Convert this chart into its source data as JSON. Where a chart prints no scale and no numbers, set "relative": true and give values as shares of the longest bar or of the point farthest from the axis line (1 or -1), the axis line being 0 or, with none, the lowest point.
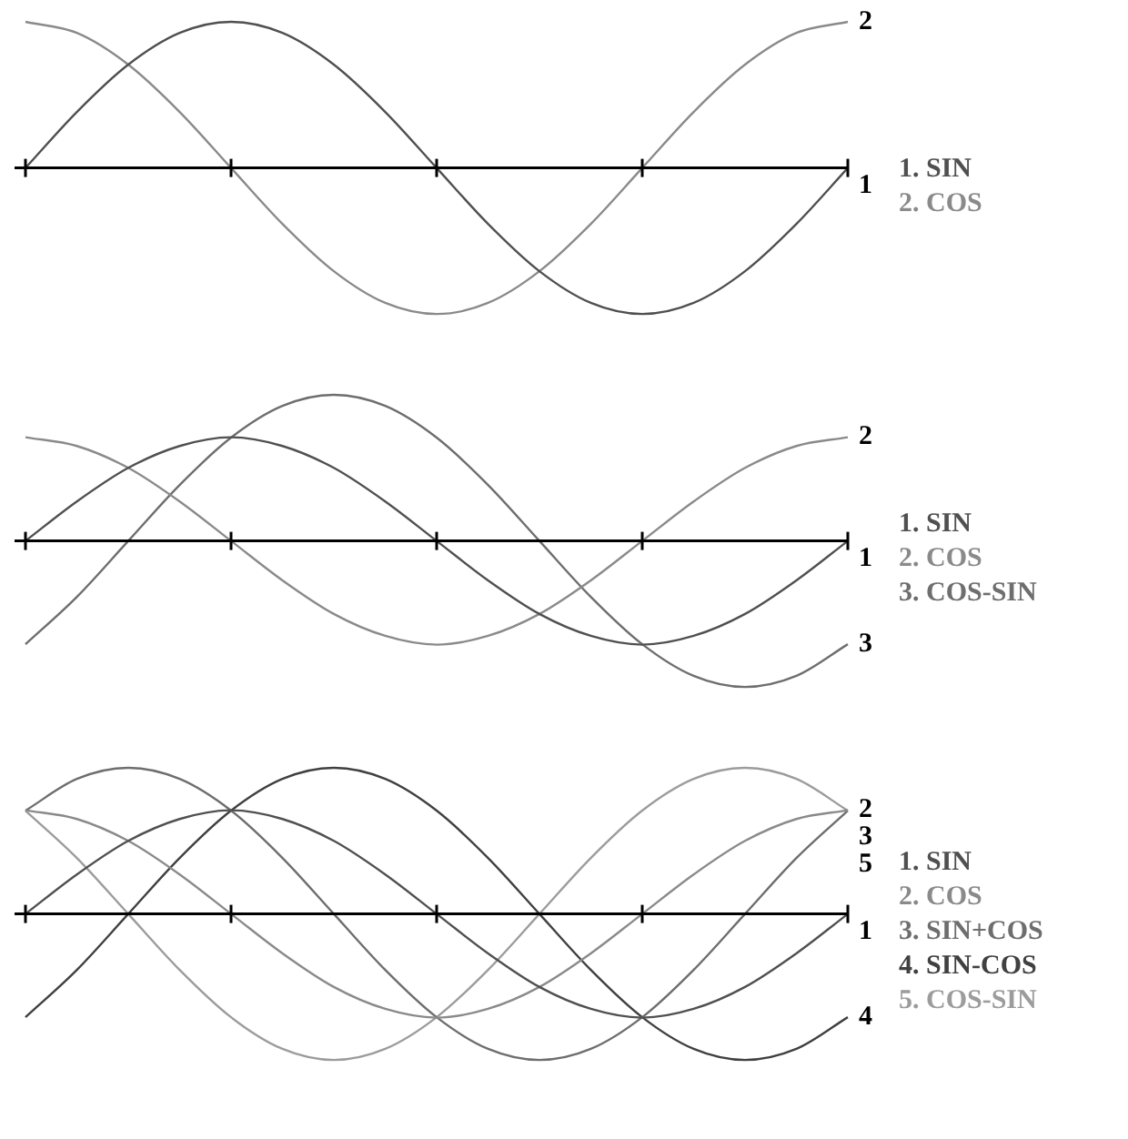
{
  "chart_data": [
    {
      "type": "line",
      "relative": true,
      "legend": "right",
      "marker": "none",
      "grid": false,
      "categories": [
        null,
        null,
        null,
        null,
        null,
        null,
        null,
        null,
        null,
        null,
        null,
        null,
        null,
        null,
        null,
        null,
        null
      ],
      "series": [
        {
          "name": "1. SIN",
          "color": "#505050",
          "values": [
            0,
            0.383,
            0.707,
            0.924,
            1,
            0.924,
            0.707,
            0.383,
            0,
            -0.383,
            -0.707,
            -0.924,
            -1,
            -0.924,
            -0.707,
            -0.383,
            0
          ]
        },
        {
          "name": "2. COS",
          "color": "#8a8a8a",
          "values": [
            1,
            0.924,
            0.707,
            0.383,
            0,
            -0.383,
            -0.707,
            -0.924,
            -1,
            -0.924,
            -0.707,
            -0.383,
            0,
            0.383,
            0.707,
            0.924,
            1
          ]
        }
      ],
      "annotations": [
        "1",
        "2"
      ]
    },
    {
      "type": "line",
      "relative": true,
      "legend": "right",
      "marker": "none",
      "grid": false,
      "categories": [
        null,
        null,
        null,
        null,
        null,
        null,
        null,
        null,
        null,
        null,
        null,
        null,
        null,
        null,
        null,
        null,
        null
      ],
      "series": [
        {
          "name": "1. SIN",
          "color": "#505050",
          "values": [
            0,
            0.27,
            0.5,
            0.65,
            0.71,
            0.65,
            0.5,
            0.27,
            0,
            -0.27,
            -0.5,
            -0.65,
            -0.71,
            -0.65,
            -0.5,
            -0.27,
            0
          ]
        },
        {
          "name": "2. COS",
          "color": "#8a8a8a",
          "values": [
            0.71,
            0.65,
            0.5,
            0.27,
            0,
            -0.27,
            -0.5,
            -0.65,
            -0.71,
            -0.65,
            -0.5,
            -0.27,
            0,
            0.27,
            0.5,
            0.65,
            0.71
          ]
        },
        {
          "name": "3. COS-SIN",
          "color": "#6e6e6e",
          "values": [
            -0.707,
            -0.383,
            0,
            0.383,
            0.707,
            0.924,
            1,
            0.924,
            0.707,
            0.383,
            0,
            -0.383,
            -0.707,
            -0.924,
            -1,
            -0.924,
            -0.707
          ]
        }
      ],
      "annotations": [
        "1",
        "2",
        "3"
      ]
    },
    {
      "type": "line",
      "relative": true,
      "legend": "right",
      "marker": "none",
      "grid": false,
      "categories": [
        null,
        null,
        null,
        null,
        null,
        null,
        null,
        null,
        null,
        null,
        null,
        null,
        null,
        null,
        null,
        null,
        null
      ],
      "series": [
        {
          "name": "1. SIN",
          "color": "#505050",
          "values": [
            0,
            0.27,
            0.5,
            0.65,
            0.71,
            0.65,
            0.5,
            0.27,
            0,
            -0.27,
            -0.5,
            -0.65,
            -0.71,
            -0.65,
            -0.5,
            -0.27,
            0
          ]
        },
        {
          "name": "2. COS",
          "color": "#8a8a8a",
          "values": [
            0.71,
            0.65,
            0.5,
            0.27,
            0,
            -0.27,
            -0.5,
            -0.65,
            -0.71,
            -0.65,
            -0.5,
            -0.27,
            0,
            0.27,
            0.5,
            0.65,
            0.71
          ]
        },
        {
          "name": "3. SIN+COS",
          "color": "#6e6e6e",
          "values": [
            0.707,
            0.924,
            1,
            0.924,
            0.707,
            0.383,
            0,
            -0.383,
            -0.707,
            -0.924,
            -1,
            -0.924,
            -0.707,
            -0.383,
            0,
            0.383,
            0.707
          ]
        },
        {
          "name": "4. SIN-COS",
          "color": "#404040",
          "values": [
            -0.707,
            -0.383,
            0,
            0.383,
            0.707,
            0.924,
            1,
            0.924,
            0.707,
            0.383,
            0,
            -0.383,
            -0.707,
            -0.924,
            -1,
            -0.924,
            -0.707
          ]
        },
        {
          "name": "5. COS-SIN",
          "color": "#9c9c9c",
          "values": [
            0.707,
            0.383,
            0,
            -0.383,
            -0.707,
            -0.924,
            -1,
            -0.924,
            -0.707,
            -0.383,
            0,
            0.383,
            0.707,
            0.924,
            1,
            0.924,
            0.707
          ]
        }
      ],
      "annotations": [
        "1",
        "2",
        "3",
        "4",
        "5"
      ]
    }
  ]
}
